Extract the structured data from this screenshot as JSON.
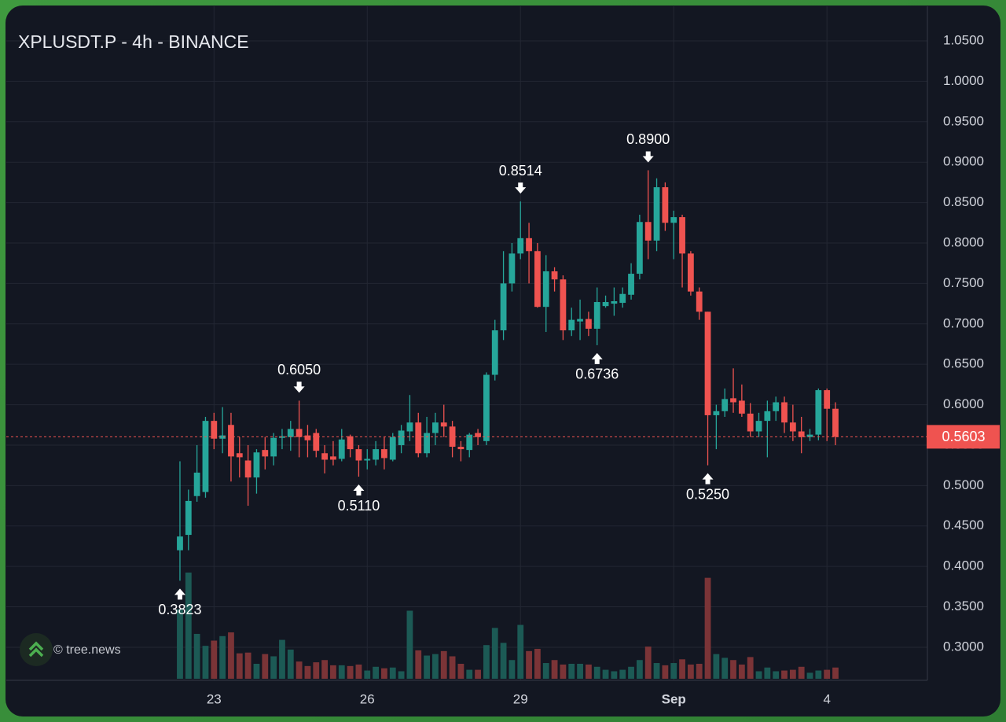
{
  "chart_data": {
    "type": "candlestick",
    "title": "XPLUSDT.P - 4h - BINANCE",
    "watermark": "© tree.news",
    "up_color": "#26a69a",
    "down_color": "#ef5350",
    "volume_up_color": "#1c5a55",
    "volume_down_color": "#7b3437",
    "ylim": [
      0.2591,
      1.0928
    ],
    "xlim": [
      -20.4,
      87.8
    ],
    "grid": true,
    "yticks": [
      {
        "value": 1.05,
        "label": "1.0500"
      },
      {
        "value": 1.0,
        "label": "1.0000"
      },
      {
        "value": 0.95,
        "label": "0.9500"
      },
      {
        "value": 0.9,
        "label": "0.9000"
      },
      {
        "value": 0.85,
        "label": "0.8500"
      },
      {
        "value": 0.8,
        "label": "0.8000"
      },
      {
        "value": 0.75,
        "label": "0.7500"
      },
      {
        "value": 0.7,
        "label": "0.7000"
      },
      {
        "value": 0.65,
        "label": "0.6500"
      },
      {
        "value": 0.6,
        "label": "0.6000"
      },
      {
        "value": 0.55,
        "label": "0.5500"
      },
      {
        "value": 0.5,
        "label": "0.5000"
      },
      {
        "value": 0.45,
        "label": "0.4500"
      },
      {
        "value": 0.4,
        "label": "0.4000"
      },
      {
        "value": 0.35,
        "label": "0.3500"
      },
      {
        "value": 0.3,
        "label": "0.3000"
      }
    ],
    "xticks": [
      {
        "value": 4,
        "label": "23"
      },
      {
        "value": 22,
        "label": "26"
      },
      {
        "value": 40,
        "label": "29"
      },
      {
        "value": 58,
        "label": "Sep"
      },
      {
        "value": 76,
        "label": "4"
      }
    ],
    "last_price": {
      "value": 0.5603,
      "label": "0.5603"
    },
    "open": [
      0.42,
      0.439,
      0.487,
      0.492,
      0.58,
      0.558,
      0.575,
      0.54,
      0.531,
      0.51,
      0.544,
      0.536,
      0.559,
      0.56,
      0.57,
      0.562,
      0.565,
      0.54,
      0.536,
      0.533,
      0.561,
      0.545,
      0.531,
      0.532,
      0.545,
      0.532,
      0.55,
      0.567,
      0.578,
      0.54,
      0.565,
      0.578,
      0.573,
      0.548,
      0.544,
      0.565,
      0.555,
      0.637,
      0.692,
      0.75,
      0.787,
      0.806,
      0.79,
      0.721,
      0.765,
      0.755,
      0.692,
      0.703,
      0.706,
      0.694,
      0.722,
      0.725,
      0.726,
      0.736,
      0.762,
      0.826,
      0.803,
      0.869,
      0.825,
      0.832,
      0.787,
      0.74,
      0.715,
      0.587,
      0.592,
      0.608,
      0.605,
      0.589,
      0.567,
      0.58,
      0.592,
      0.603,
      0.578,
      0.567,
      0.56,
      0.563,
      0.618,
      0.595
    ],
    "high": [
      0.53,
      0.495,
      0.55,
      0.585,
      0.59,
      0.597,
      0.59,
      0.56,
      0.55,
      0.545,
      0.56,
      0.565,
      0.57,
      0.58,
      0.605,
      0.575,
      0.57,
      0.55,
      0.555,
      0.57,
      0.563,
      0.55,
      0.545,
      0.555,
      0.56,
      0.565,
      0.575,
      0.612,
      0.59,
      0.585,
      0.59,
      0.6,
      0.58,
      0.555,
      0.565,
      0.57,
      0.64,
      0.705,
      0.79,
      0.8,
      0.8514,
      0.825,
      0.8,
      0.785,
      0.77,
      0.76,
      0.72,
      0.73,
      0.715,
      0.745,
      0.735,
      0.745,
      0.745,
      0.775,
      0.835,
      0.89,
      0.88,
      0.875,
      0.84,
      0.835,
      0.79,
      0.745,
      0.715,
      0.6,
      0.62,
      0.645,
      0.625,
      0.602,
      0.59,
      0.605,
      0.61,
      0.61,
      0.6,
      0.585,
      0.57,
      0.62,
      0.62,
      0.603
    ],
    "low": [
      0.3823,
      0.42,
      0.48,
      0.485,
      0.545,
      0.54,
      0.505,
      0.51,
      0.475,
      0.49,
      0.52,
      0.525,
      0.545,
      0.543,
      0.535,
      0.535,
      0.535,
      0.515,
      0.525,
      0.53,
      0.535,
      0.511,
      0.52,
      0.525,
      0.52,
      0.53,
      0.54,
      0.555,
      0.535,
      0.535,
      0.55,
      0.56,
      0.535,
      0.53,
      0.535,
      0.55,
      0.55,
      0.63,
      0.68,
      0.74,
      0.78,
      0.75,
      0.72,
      0.69,
      0.74,
      0.68,
      0.685,
      0.68,
      0.685,
      0.6736,
      0.72,
      0.71,
      0.72,
      0.73,
      0.755,
      0.78,
      0.79,
      0.815,
      0.78,
      0.745,
      0.735,
      0.705,
      0.525,
      0.545,
      0.585,
      0.59,
      0.585,
      0.56,
      0.56,
      0.535,
      0.58,
      0.565,
      0.555,
      0.54,
      0.555,
      0.556,
      0.555,
      0.55
    ],
    "close": [
      0.437,
      0.481,
      0.516,
      0.58,
      0.558,
      0.562,
      0.536,
      0.535,
      0.51,
      0.541,
      0.536,
      0.559,
      0.561,
      0.57,
      0.56,
      0.556,
      0.543,
      0.532,
      0.532,
      0.557,
      0.545,
      0.531,
      0.533,
      0.545,
      0.534,
      0.56,
      0.568,
      0.578,
      0.54,
      0.565,
      0.578,
      0.573,
      0.548,
      0.545,
      0.563,
      0.56,
      0.637,
      0.692,
      0.75,
      0.787,
      0.806,
      0.79,
      0.721,
      0.765,
      0.755,
      0.692,
      0.705,
      0.706,
      0.694,
      0.727,
      0.727,
      0.728,
      0.737,
      0.762,
      0.826,
      0.803,
      0.869,
      0.825,
      0.832,
      0.787,
      0.74,
      0.715,
      0.587,
      0.592,
      0.607,
      0.603,
      0.589,
      0.567,
      0.58,
      0.592,
      0.603,
      0.578,
      0.567,
      0.56,
      0.563,
      0.618,
      0.595,
      0.5603
    ],
    "volume": [
      93,
      142,
      60,
      44,
      51,
      57,
      62,
      34,
      35,
      20,
      33,
      30,
      52,
      39,
      23,
      17,
      22,
      25,
      18,
      18,
      17,
      19,
      11,
      16,
      14,
      15,
      10,
      91,
      38,
      31,
      33,
      37,
      30,
      20,
      12,
      12,
      45,
      68,
      48,
      25,
      72,
      37,
      40,
      21,
      25,
      19,
      20,
      20,
      19,
      16,
      12,
      10,
      12,
      16,
      25,
      43,
      21,
      18,
      21,
      26,
      19,
      20,
      135,
      33,
      28,
      25,
      19,
      29,
      10,
      15,
      10,
      11,
      12,
      16,
      8,
      11,
      12,
      15
    ],
    "annotations": [
      {
        "x": 0,
        "value": 0.3823,
        "label": "0.3823",
        "side": "low"
      },
      {
        "x": 14,
        "value": 0.605,
        "label": "0.6050",
        "side": "high"
      },
      {
        "x": 21,
        "value": 0.511,
        "label": "0.5110",
        "side": "low"
      },
      {
        "x": 40,
        "value": 0.8514,
        "label": "0.8514",
        "side": "high"
      },
      {
        "x": 49,
        "value": 0.6736,
        "label": "0.6736",
        "side": "low"
      },
      {
        "x": 55,
        "value": 0.89,
        "label": "0.8900",
        "side": "high"
      },
      {
        "x": 62,
        "value": 0.525,
        "label": "0.5250",
        "side": "low"
      }
    ]
  }
}
